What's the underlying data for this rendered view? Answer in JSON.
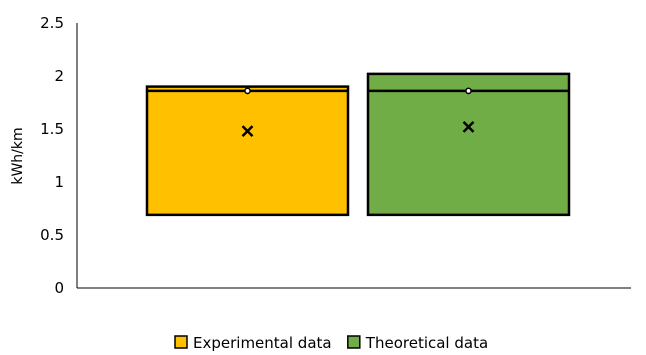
{
  "chart_data": {
    "type": "box",
    "categories": [
      "Experimental data",
      "Theoretical data"
    ],
    "series": [
      {
        "name": "Experimental data",
        "color": "#FFC000",
        "min": 0.69,
        "q1": 0.69,
        "median": 1.86,
        "q3": 1.9,
        "max": 1.9,
        "mean": 1.48,
        "outliers": [
          1.86
        ]
      },
      {
        "name": "Theoretical data",
        "color": "#70AD47",
        "min": 0.69,
        "q1": 0.69,
        "median": 1.86,
        "q3": 2.02,
        "max": 2.02,
        "mean": 1.52,
        "outliers": [
          1.86
        ]
      }
    ],
    "title": "",
    "xlabel": "",
    "ylabel": "kWh/km",
    "ylim": [
      0,
      2.5
    ],
    "yticks": [
      0,
      0.5,
      1,
      1.5,
      2,
      2.5
    ],
    "ytick_labels": [
      "0",
      "0.5",
      "1",
      "1.5",
      "2",
      "2.5"
    ],
    "legend_position": "bottom",
    "grid": false
  }
}
